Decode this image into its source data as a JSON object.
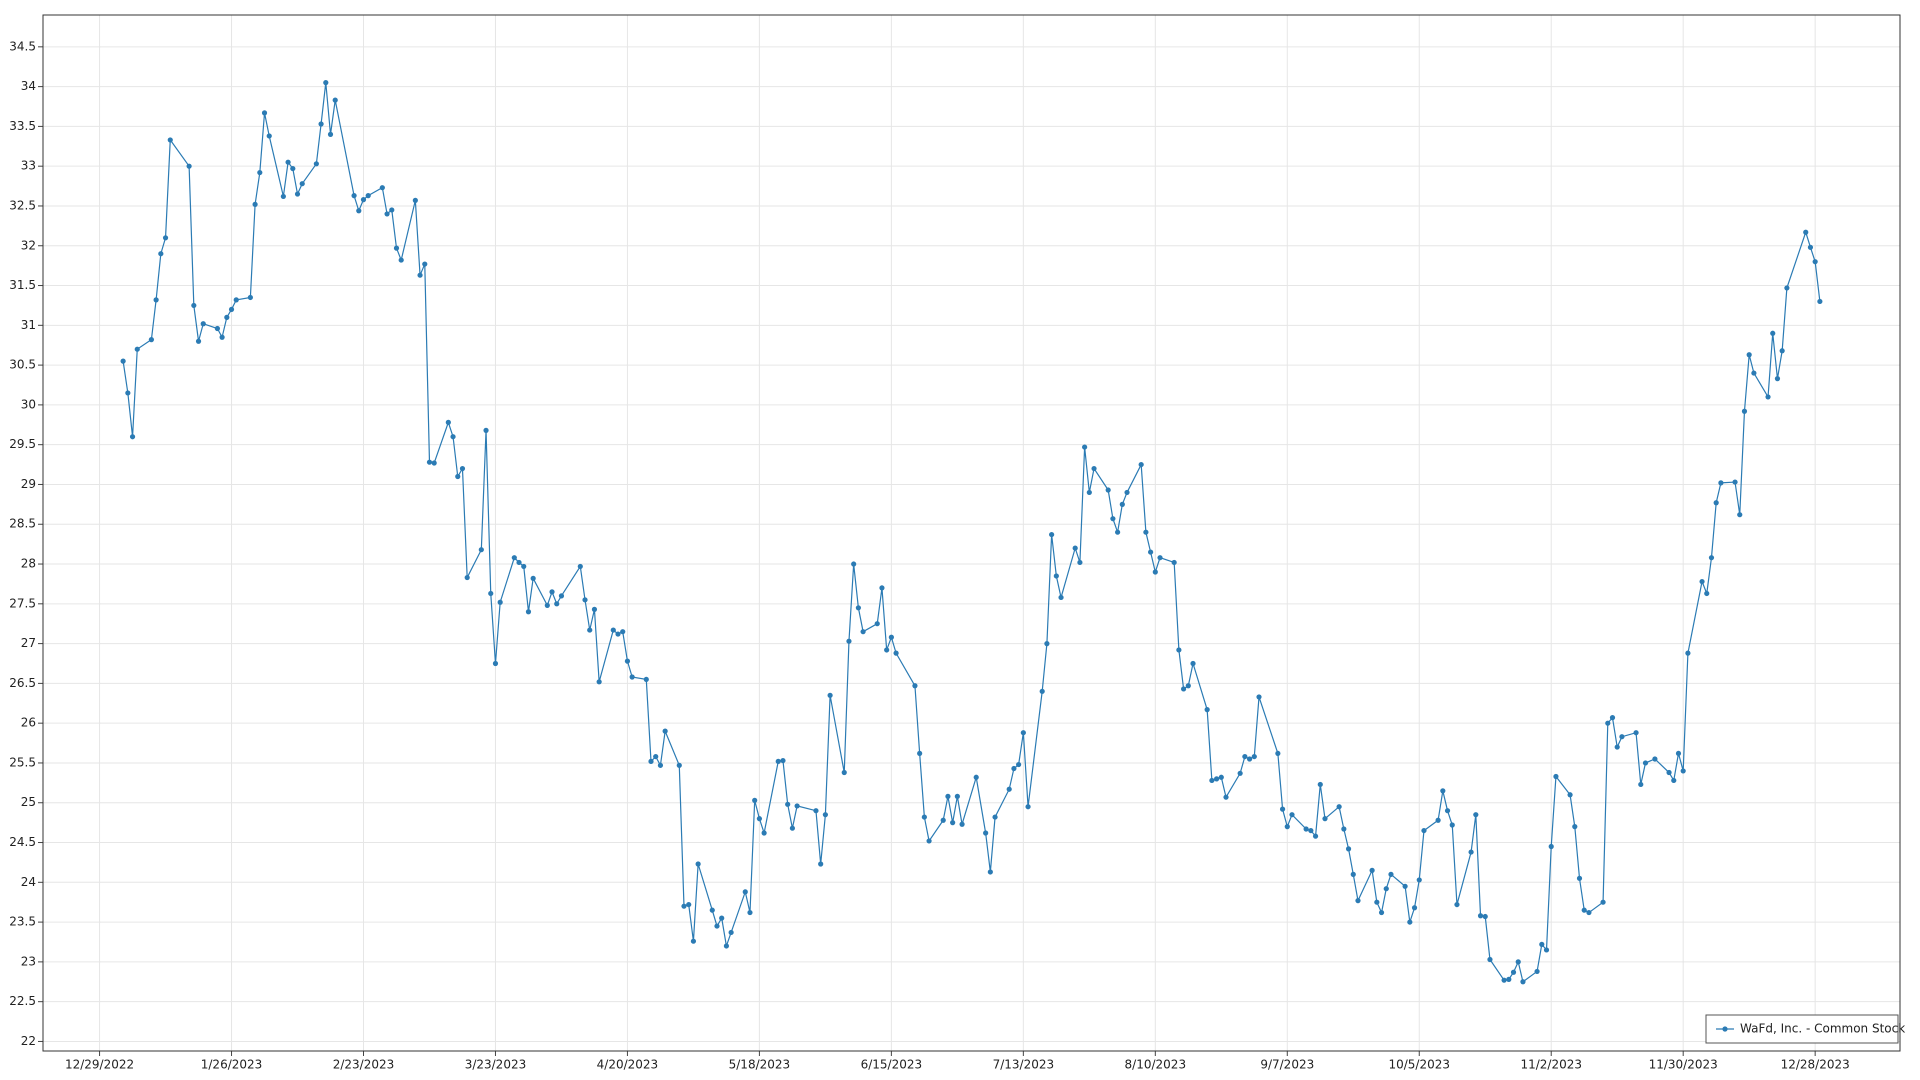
{
  "chart_data": {
    "type": "line",
    "x": [
      "1/3/2023",
      "1/4/2023",
      "1/5/2023",
      "1/6/2023",
      "1/9/2023",
      "1/10/2023",
      "1/11/2023",
      "1/12/2023",
      "1/13/2023",
      "1/17/2023",
      "1/18/2023",
      "1/19/2023",
      "1/20/2023",
      "1/23/2023",
      "1/24/2023",
      "1/25/2023",
      "1/26/2023",
      "1/27/2023",
      "1/30/2023",
      "1/31/2023",
      "2/1/2023",
      "2/2/2023",
      "2/3/2023",
      "2/6/2023",
      "2/7/2023",
      "2/8/2023",
      "2/9/2023",
      "2/10/2023",
      "2/13/2023",
      "2/14/2023",
      "2/15/2023",
      "2/16/2023",
      "2/17/2023",
      "2/21/2023",
      "2/22/2023",
      "2/23/2023",
      "2/24/2023",
      "2/27/2023",
      "2/28/2023",
      "3/1/2023",
      "3/2/2023",
      "3/3/2023",
      "3/6/2023",
      "3/7/2023",
      "3/8/2023",
      "3/9/2023",
      "3/10/2023",
      "3/13/2023",
      "3/14/2023",
      "3/15/2023",
      "3/16/2023",
      "3/17/2023",
      "3/20/2023",
      "3/21/2023",
      "3/22/2023",
      "3/23/2023",
      "3/24/2023",
      "3/27/2023",
      "3/28/2023",
      "3/29/2023",
      "3/30/2023",
      "3/31/2023",
      "4/3/2023",
      "4/4/2023",
      "4/5/2023",
      "4/6/2023",
      "4/10/2023",
      "4/11/2023",
      "4/12/2023",
      "4/13/2023",
      "4/14/2023",
      "4/17/2023",
      "4/18/2023",
      "4/19/2023",
      "4/20/2023",
      "4/21/2023",
      "4/24/2023",
      "4/25/2023",
      "4/26/2023",
      "4/27/2023",
      "4/28/2023",
      "5/1/2023",
      "5/2/2023",
      "5/3/2023",
      "5/4/2023",
      "5/5/2023",
      "5/8/2023",
      "5/9/2023",
      "5/10/2023",
      "5/11/2023",
      "5/12/2023",
      "5/15/2023",
      "5/16/2023",
      "5/17/2023",
      "5/18/2023",
      "5/19/2023",
      "5/22/2023",
      "5/23/2023",
      "5/24/2023",
      "5/25/2023",
      "5/26/2023",
      "5/30/2023",
      "5/31/2023",
      "6/1/2023",
      "6/2/2023",
      "6/5/2023",
      "6/6/2023",
      "6/7/2023",
      "6/8/2023",
      "6/9/2023",
      "6/12/2023",
      "6/13/2023",
      "6/14/2023",
      "6/15/2023",
      "6/16/2023",
      "6/20/2023",
      "6/21/2023",
      "6/22/2023",
      "6/23/2023",
      "6/26/2023",
      "6/27/2023",
      "6/28/2023",
      "6/29/2023",
      "6/30/2023",
      "7/3/2023",
      "7/5/2023",
      "7/6/2023",
      "7/7/2023",
      "7/10/2023",
      "7/11/2023",
      "7/12/2023",
      "7/13/2023",
      "7/14/2023",
      "7/17/2023",
      "7/18/2023",
      "7/19/2023",
      "7/20/2023",
      "7/21/2023",
      "7/24/2023",
      "7/25/2023",
      "7/26/2023",
      "7/27/2023",
      "7/28/2023",
      "7/31/2023",
      "8/1/2023",
      "8/2/2023",
      "8/3/2023",
      "8/4/2023",
      "8/7/2023",
      "8/8/2023",
      "8/9/2023",
      "8/10/2023",
      "8/11/2023",
      "8/14/2023",
      "8/15/2023",
      "8/16/2023",
      "8/17/2023",
      "8/18/2023",
      "8/21/2023",
      "8/22/2023",
      "8/23/2023",
      "8/24/2023",
      "8/25/2023",
      "8/28/2023",
      "8/29/2023",
      "8/30/2023",
      "8/31/2023",
      "9/1/2023",
      "9/5/2023",
      "9/6/2023",
      "9/7/2023",
      "9/8/2023",
      "9/11/2023",
      "9/12/2023",
      "9/13/2023",
      "9/14/2023",
      "9/15/2023",
      "9/18/2023",
      "9/19/2023",
      "9/20/2023",
      "9/21/2023",
      "9/22/2023",
      "9/25/2023",
      "9/26/2023",
      "9/27/2023",
      "9/28/2023",
      "9/29/2023",
      "10/2/2023",
      "10/3/2023",
      "10/4/2023",
      "10/5/2023",
      "10/6/2023",
      "10/9/2023",
      "10/10/2023",
      "10/11/2023",
      "10/12/2023",
      "10/13/2023",
      "10/16/2023",
      "10/17/2023",
      "10/18/2023",
      "10/19/2023",
      "10/20/2023",
      "10/23/2023",
      "10/24/2023",
      "10/25/2023",
      "10/26/2023",
      "10/27/2023",
      "10/30/2023",
      "10/31/2023",
      "11/1/2023",
      "11/2/2023",
      "11/3/2023",
      "11/6/2023",
      "11/7/2023",
      "11/8/2023",
      "11/9/2023",
      "11/10/2023",
      "11/13/2023",
      "11/14/2023",
      "11/15/2023",
      "11/16/2023",
      "11/17/2023",
      "11/20/2023",
      "11/21/2023",
      "11/22/2023",
      "11/24/2023",
      "11/27/2023",
      "11/28/2023",
      "11/29/2023",
      "11/30/2023",
      "12/1/2023",
      "12/4/2023",
      "12/5/2023",
      "12/6/2023",
      "12/7/2023",
      "12/8/2023",
      "12/11/2023",
      "12/12/2023",
      "12/13/2023",
      "12/14/2023",
      "12/15/2023",
      "12/18/2023",
      "12/19/2023",
      "12/20/2023",
      "12/21/2023",
      "12/22/2023",
      "12/26/2023",
      "12/27/2023",
      "12/28/2023",
      "12/29/2023"
    ],
    "series": [
      {
        "name": "WaFd, Inc. - Common Stock",
        "color": "#2b7bb4",
        "values": [
          30.55,
          30.15,
          29.6,
          30.7,
          30.82,
          31.32,
          31.9,
          32.1,
          33.33,
          33.0,
          31.25,
          30.8,
          31.02,
          30.96,
          30.85,
          31.1,
          31.2,
          31.32,
          31.35,
          32.52,
          32.92,
          33.67,
          33.38,
          32.62,
          33.05,
          32.97,
          32.65,
          32.78,
          33.03,
          33.53,
          34.05,
          33.4,
          33.83,
          32.63,
          32.44,
          32.58,
          32.63,
          32.73,
          32.4,
          32.45,
          31.97,
          31.82,
          32.57,
          31.63,
          31.77,
          29.28,
          29.27,
          29.78,
          29.6,
          29.1,
          29.2,
          27.83,
          28.18,
          29.68,
          27.63,
          26.75,
          27.52,
          28.08,
          28.02,
          27.97,
          27.4,
          27.82,
          27.48,
          27.65,
          27.5,
          27.6,
          27.97,
          27.55,
          27.17,
          27.43,
          26.52,
          27.17,
          27.12,
          27.15,
          26.78,
          26.58,
          26.55,
          25.52,
          25.58,
          25.47,
          25.9,
          25.47,
          23.7,
          23.72,
          23.26,
          24.23,
          23.65,
          23.45,
          23.55,
          23.2,
          23.37,
          23.88,
          23.62,
          25.03,
          24.8,
          24.62,
          25.52,
          25.53,
          24.98,
          24.68,
          24.96,
          24.9,
          24.23,
          24.85,
          26.35,
          25.38,
          27.03,
          28.0,
          27.45,
          27.15,
          27.25,
          27.7,
          26.92,
          27.08,
          26.88,
          26.47,
          25.62,
          24.82,
          24.52,
          24.78,
          25.08,
          24.75,
          25.08,
          24.73,
          25.32,
          24.62,
          24.13,
          24.82,
          25.17,
          25.43,
          25.48,
          25.88,
          24.95,
          26.4,
          27.0,
          28.37,
          27.85,
          27.58,
          28.2,
          28.02,
          29.47,
          28.9,
          29.2,
          28.93,
          28.57,
          28.4,
          28.75,
          28.9,
          29.25,
          28.4,
          28.15,
          27.9,
          28.08,
          28.02,
          26.92,
          26.43,
          26.47,
          26.75,
          26.17,
          25.28,
          25.3,
          25.32,
          25.07,
          25.37,
          25.58,
          25.55,
          25.58,
          26.33,
          25.62,
          24.92,
          24.7,
          24.85,
          24.67,
          24.65,
          24.58,
          25.23,
          24.8,
          24.95,
          24.67,
          24.42,
          24.1,
          23.77,
          24.15,
          23.75,
          23.62,
          23.92,
          24.1,
          23.95,
          23.5,
          23.68,
          24.03,
          24.65,
          24.78,
          25.15,
          24.9,
          24.72,
          23.72,
          24.38,
          24.85,
          23.58,
          23.57,
          23.03,
          22.77,
          22.78,
          22.87,
          23.0,
          22.75,
          22.88,
          23.22,
          23.15,
          24.45,
          25.33,
          25.1,
          24.7,
          24.05,
          23.65,
          23.62,
          23.75,
          26.0,
          26.07,
          25.7,
          25.83,
          25.88,
          25.23,
          25.5,
          25.55,
          25.38,
          25.28,
          25.62,
          25.4,
          26.88,
          27.78,
          27.63,
          28.08,
          28.77,
          29.02,
          29.03,
          28.62,
          29.92,
          30.63,
          30.4,
          30.1,
          30.9,
          30.33,
          30.68,
          31.47,
          32.17,
          31.98,
          31.8,
          31.3
        ]
      }
    ],
    "xlim": [
      "12/17/2022",
      "1/15/2024"
    ],
    "xticks": [
      "12/29/2022",
      "1/26/2023",
      "2/23/2023",
      "3/23/2023",
      "4/20/2023",
      "5/18/2023",
      "6/15/2023",
      "7/13/2023",
      "8/10/2023",
      "9/7/2023",
      "10/5/2023",
      "11/2/2023",
      "11/30/2023",
      "12/28/2023"
    ],
    "ylim": [
      21.88,
      34.9
    ],
    "yticks": [
      22,
      22.5,
      23,
      23.5,
      24,
      24.5,
      25,
      25.5,
      26,
      26.5,
      27,
      27.5,
      28,
      28.5,
      29,
      29.5,
      30,
      30.5,
      31,
      31.5,
      32,
      32.5,
      33,
      33.5,
      34,
      34.5
    ],
    "grid": true,
    "legend": "lower right"
  }
}
